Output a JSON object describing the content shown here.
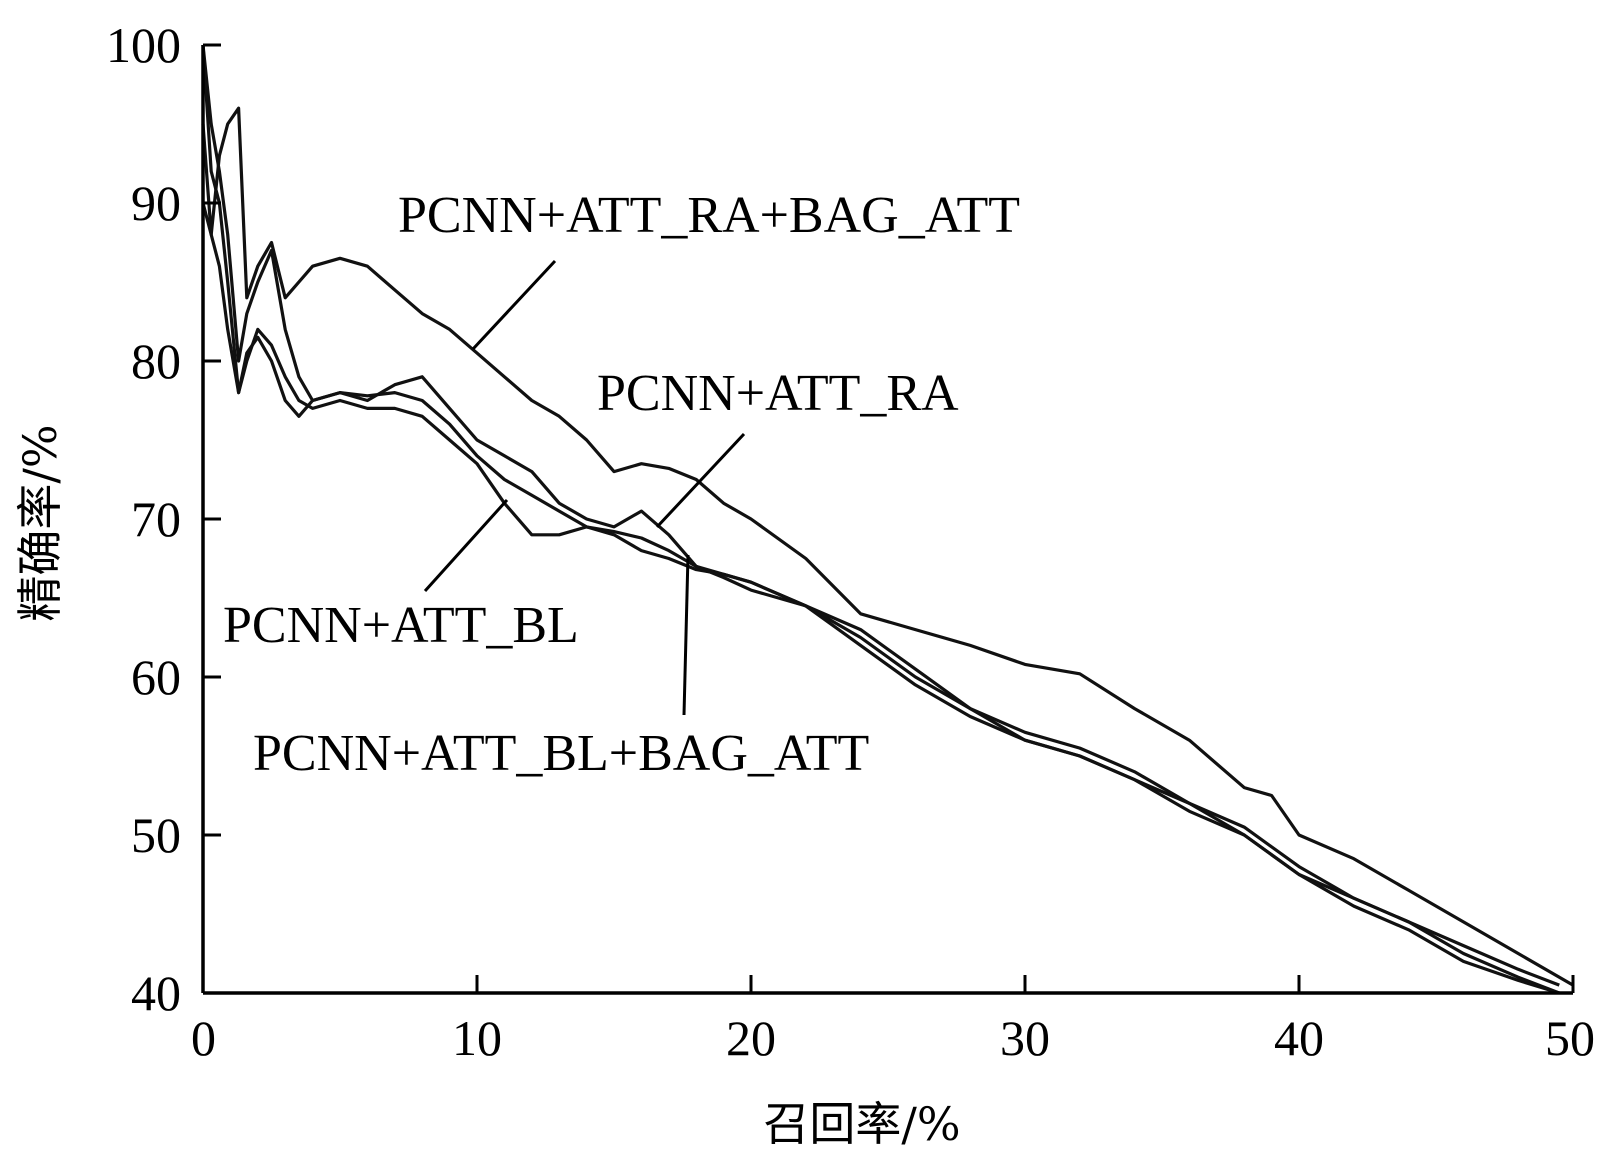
{
  "chart_data": {
    "type": "line",
    "xlabel": "召回率/%",
    "ylabel": "精确率/%",
    "xlim": [
      0,
      50
    ],
    "ylim": [
      40,
      100
    ],
    "x_ticks": [
      0,
      10,
      20,
      30,
      40,
      50
    ],
    "y_ticks": [
      40,
      50,
      60,
      70,
      80,
      90,
      100
    ],
    "grid": false,
    "series": [
      {
        "name": "PCNN+ATT_RA+BAG_ATT",
        "x": [
          0,
          0.3,
          0.6,
          0.9,
          1.3,
          1.6,
          2,
          2.5,
          3,
          3.5,
          4,
          5,
          6,
          7,
          8,
          9,
          10,
          11,
          12,
          13,
          14,
          15,
          16,
          17,
          18,
          19,
          20,
          22,
          24,
          26,
          28,
          30,
          32,
          34,
          36,
          38,
          39,
          40,
          42,
          44,
          46,
          48,
          50
        ],
        "y": [
          90,
          88,
          93,
          95,
          96,
          84,
          86,
          87.5,
          84,
          85,
          86,
          86.5,
          86,
          84.5,
          83,
          82,
          80.5,
          79,
          77.5,
          76.5,
          75,
          73,
          73.5,
          73.2,
          72.5,
          71,
          70,
          67.5,
          64,
          63,
          62,
          60.8,
          60.2,
          58,
          56,
          53,
          52.5,
          50,
          48.5,
          46.5,
          44.5,
          42.5,
          40.5
        ]
      },
      {
        "name": "PCNN+ATT_RA",
        "x": [
          0,
          0.3,
          0.6,
          0.9,
          1.3,
          1.6,
          2,
          2.5,
          3,
          3.5,
          4,
          5,
          6,
          7,
          8,
          9,
          10,
          11,
          12,
          13,
          14,
          15,
          16,
          17,
          18,
          19,
          20,
          22,
          24,
          26,
          28,
          30,
          32,
          34,
          36,
          38,
          40,
          42,
          44,
          46,
          48,
          49.5
        ],
        "y": [
          100,
          95,
          92,
          88,
          80,
          83,
          85,
          87,
          82,
          79,
          77.5,
          78,
          77.5,
          78.5,
          79,
          77,
          75,
          74,
          73,
          71,
          70,
          69.5,
          70.5,
          69,
          67,
          66.5,
          66,
          64.5,
          63,
          60.5,
          58,
          56,
          55,
          53.5,
          52,
          50,
          47.5,
          46,
          44.5,
          43,
          41.5,
          40.5
        ]
      },
      {
        "name": "PCNN+ATT_BL",
        "x": [
          0,
          0.3,
          0.6,
          0.9,
          1.3,
          1.6,
          2,
          2.5,
          3,
          3.5,
          4,
          5,
          6,
          7,
          8,
          9,
          10,
          11,
          12,
          13,
          14,
          15,
          16,
          17,
          18,
          19,
          20,
          22,
          24,
          26,
          28,
          30,
          32,
          34,
          36,
          38,
          40,
          42,
          44,
          46,
          48,
          49.5
        ],
        "y": [
          100,
          92,
          90,
          85,
          78,
          80,
          82,
          81,
          79,
          77.5,
          77,
          77.5,
          77,
          77,
          76.5,
          75,
          73.5,
          71,
          69,
          69,
          69.5,
          69,
          68,
          67.5,
          66.8,
          66.5,
          66,
          64.5,
          62.5,
          60,
          58,
          56.5,
          55.5,
          54,
          52,
          50.5,
          48,
          46,
          44.5,
          42.5,
          41,
          40
        ]
      },
      {
        "name": "PCNN+ATT_BL+BAG_ATT",
        "x": [
          0,
          0.3,
          0.6,
          0.9,
          1.3,
          1.6,
          2,
          2.5,
          3,
          3.5,
          4,
          5,
          6,
          7,
          8,
          9,
          10,
          11,
          12,
          13,
          14,
          15,
          16,
          17,
          18,
          19,
          20,
          22,
          24,
          26,
          28,
          30,
          32,
          34,
          36,
          38,
          40,
          42,
          44,
          46,
          48,
          49.5
        ],
        "y": [
          95,
          88,
          86,
          82,
          78,
          80.5,
          81.5,
          80,
          77.5,
          76.5,
          77.5,
          78,
          77.8,
          78,
          77.5,
          76,
          74,
          72.5,
          71.5,
          70.5,
          69.5,
          69.2,
          68.8,
          68,
          67,
          66.3,
          65.5,
          64.5,
          62,
          59.5,
          57.5,
          56,
          55,
          53.5,
          51.5,
          50,
          47.5,
          45.5,
          44,
          42,
          40.8,
          40
        ]
      }
    ],
    "series_label_texts": [
      "PCNN+ATT_RA+BAG_ATT",
      "PCNN+ATT_RA",
      "PCNN+ATT_BL",
      "PCNN+ATT_BL+BAG_ATT"
    ]
  }
}
